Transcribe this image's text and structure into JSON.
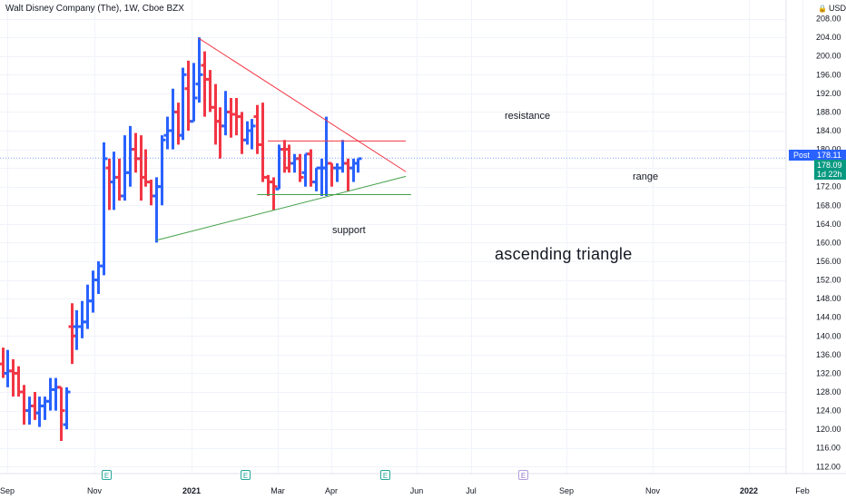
{
  "header": {
    "symbol_title": "Walt Disney Company (The), 1W, Cboe BZX",
    "currency": "USD",
    "currency_icon": "lock-icon"
  },
  "price_tags": {
    "post_label": "Post",
    "post_price": "178.11",
    "last_price": "178.09",
    "countdown": "1d 22h"
  },
  "annotations": {
    "resistance": "resistance",
    "range": "range",
    "support": "support",
    "pattern": "ascending triangle"
  },
  "earnings": {
    "past_label": "E",
    "future_label": "E",
    "past_color": "#26a69a",
    "future_color": "#9575cd"
  },
  "colors": {
    "up": "#2962ff",
    "down": "#f23645",
    "resistance_line": "#f23645",
    "support_line": "#43a047",
    "grid": "#f0f3fa",
    "post_line": "#2962ff",
    "post_tag": "#2962ff",
    "last_tag": "#089981"
  },
  "chart_data": {
    "type": "ohlc",
    "interval": "1W",
    "title": "Walt Disney Company (The), 1W, Cboe BZX",
    "y_ticks": [
      112,
      116,
      120,
      124,
      128,
      132,
      136,
      140,
      144,
      148,
      152,
      156,
      160,
      164,
      168,
      172,
      176,
      180,
      184,
      188,
      192,
      196,
      200,
      204,
      208
    ],
    "ylim": [
      110.5,
      212
    ],
    "x_ticks": [
      "Sep",
      "Nov",
      "2021",
      "Mar",
      "Apr",
      "Jun",
      "Jul",
      "Sep",
      "Nov",
      "2022",
      "Feb"
    ],
    "grid": true,
    "bars": [
      {
        "o": 134,
        "h": 137.5,
        "l": 131,
        "c": 132
      },
      {
        "o": 132,
        "h": 137,
        "l": 129,
        "c": 132.5
      },
      {
        "o": 132.5,
        "h": 135,
        "l": 127,
        "c": 132
      },
      {
        "o": 132,
        "h": 133.5,
        "l": 127,
        "c": 128
      },
      {
        "o": 128,
        "h": 129.5,
        "l": 121,
        "c": 124
      },
      {
        "o": 124,
        "h": 127,
        "l": 121,
        "c": 125
      },
      {
        "o": 125,
        "h": 128,
        "l": 122,
        "c": 123.5
      },
      {
        "o": 123.5,
        "h": 127,
        "l": 120.5,
        "c": 125
      },
      {
        "o": 125,
        "h": 127,
        "l": 122,
        "c": 126
      },
      {
        "o": 126,
        "h": 131,
        "l": 124,
        "c": 128.5
      },
      {
        "o": 128.5,
        "h": 131,
        "l": 124,
        "c": 129
      },
      {
        "o": 129,
        "h": 129,
        "l": 117.5,
        "c": 124
      },
      {
        "o": 121,
        "h": 129,
        "l": 120,
        "c": 128
      },
      {
        "o": 142,
        "h": 147,
        "l": 134,
        "c": 140
      },
      {
        "o": 142,
        "h": 145.5,
        "l": 137,
        "c": 142
      },
      {
        "o": 142,
        "h": 147.5,
        "l": 139.5,
        "c": 143
      },
      {
        "o": 143,
        "h": 151,
        "l": 141.5,
        "c": 147.5
      },
      {
        "o": 147.5,
        "h": 154,
        "l": 145,
        "c": 152
      },
      {
        "o": 152,
        "h": 156,
        "l": 149,
        "c": 155
      },
      {
        "o": 155,
        "h": 181.5,
        "l": 153,
        "c": 178
      },
      {
        "o": 176,
        "h": 178,
        "l": 167,
        "c": 173
      },
      {
        "o": 173,
        "h": 179.5,
        "l": 167,
        "c": 174
      },
      {
        "o": 174,
        "h": 178,
        "l": 169,
        "c": 170
      },
      {
        "o": 170,
        "h": 183,
        "l": 169,
        "c": 175
      },
      {
        "o": 175,
        "h": 185,
        "l": 172,
        "c": 180
      },
      {
        "o": 180,
        "h": 183.5,
        "l": 175,
        "c": 178
      },
      {
        "o": 178,
        "h": 183,
        "l": 169,
        "c": 174
      },
      {
        "o": 174,
        "h": 180,
        "l": 172,
        "c": 173
      },
      {
        "o": 173,
        "h": 173.5,
        "l": 168,
        "c": 170
      },
      {
        "o": 170,
        "h": 174,
        "l": 160,
        "c": 172
      },
      {
        "o": 172,
        "h": 183,
        "l": 168,
        "c": 182
      },
      {
        "o": 183,
        "h": 187,
        "l": 180,
        "c": 184
      },
      {
        "o": 184,
        "h": 193,
        "l": 180,
        "c": 188
      },
      {
        "o": 188,
        "h": 190,
        "l": 181,
        "c": 183
      },
      {
        "o": 183,
        "h": 197.5,
        "l": 182,
        "c": 196
      },
      {
        "o": 193,
        "h": 199,
        "l": 184,
        "c": 186
      },
      {
        "o": 186,
        "h": 198.5,
        "l": 186,
        "c": 191
      },
      {
        "o": 194,
        "h": 204,
        "l": 190,
        "c": 196
      },
      {
        "o": 198,
        "h": 201,
        "l": 187,
        "c": 195
      },
      {
        "o": 195,
        "h": 197,
        "l": 188,
        "c": 189
      },
      {
        "o": 189,
        "h": 194,
        "l": 181,
        "c": 186
      },
      {
        "o": 186,
        "h": 189,
        "l": 178,
        "c": 185
      },
      {
        "o": 185,
        "h": 192.5,
        "l": 183,
        "c": 188
      },
      {
        "o": 188,
        "h": 191,
        "l": 182.5,
        "c": 187.5
      },
      {
        "o": 187.5,
        "h": 191,
        "l": 183,
        "c": 187
      },
      {
        "o": 187,
        "h": 188,
        "l": 179,
        "c": 182
      },
      {
        "o": 182,
        "h": 186,
        "l": 181,
        "c": 184
      },
      {
        "o": 184,
        "h": 186.5,
        "l": 180,
        "c": 185
      },
      {
        "o": 187,
        "h": 189.5,
        "l": 179,
        "c": 181
      },
      {
        "o": 181,
        "h": 190,
        "l": 173,
        "c": 174
      },
      {
        "o": 174,
        "h": 174.5,
        "l": 170,
        "c": 173
      },
      {
        "o": 173,
        "h": 174,
        "l": 167,
        "c": 172
      },
      {
        "o": 171.5,
        "h": 181,
        "l": 171.5,
        "c": 180
      },
      {
        "o": 180,
        "h": 182,
        "l": 175,
        "c": 176
      },
      {
        "o": 180,
        "h": 181,
        "l": 175,
        "c": 177
      },
      {
        "o": 177,
        "h": 179,
        "l": 175,
        "c": 178
      },
      {
        "o": 178,
        "h": 179,
        "l": 173,
        "c": 174
      },
      {
        "o": 175,
        "h": 179,
        "l": 172,
        "c": 179
      },
      {
        "o": 179,
        "h": 180,
        "l": 172,
        "c": 173
      },
      {
        "o": 173,
        "h": 176,
        "l": 171,
        "c": 176
      },
      {
        "o": 176,
        "h": 178,
        "l": 170,
        "c": 176
      },
      {
        "o": 176,
        "h": 187,
        "l": 170,
        "c": 177
      },
      {
        "o": 177,
        "h": 177,
        "l": 172,
        "c": 176
      },
      {
        "o": 176,
        "h": 177,
        "l": 173,
        "c": 176
      },
      {
        "o": 176,
        "h": 182,
        "l": 175,
        "c": 177
      },
      {
        "o": 177,
        "h": 178,
        "l": 171,
        "c": 176
      },
      {
        "o": 176,
        "h": 178,
        "l": 173,
        "c": 177
      },
      {
        "o": 177,
        "h": 178,
        "l": 175,
        "c": 178
      }
    ],
    "trendlines": [
      {
        "name": "resistance",
        "from": {
          "bar": 37,
          "price": 203.8
        },
        "to": {
          "bar": 76,
          "price": 175.2
        }
      },
      {
        "name": "resistance-range",
        "from": {
          "bar": 50,
          "price": 181.8
        },
        "to": {
          "bar": 76,
          "price": 181.8
        }
      },
      {
        "name": "support",
        "from": {
          "bar": 29,
          "price": 160.5
        },
        "to": {
          "bar": 76,
          "price": 174.2
        }
      },
      {
        "name": "support-range",
        "from": {
          "bar": 48,
          "price": 170.3
        },
        "to": {
          "bar": 77,
          "price": 170.3
        }
      }
    ],
    "post_price": 178.11,
    "last_price": 178.09
  }
}
